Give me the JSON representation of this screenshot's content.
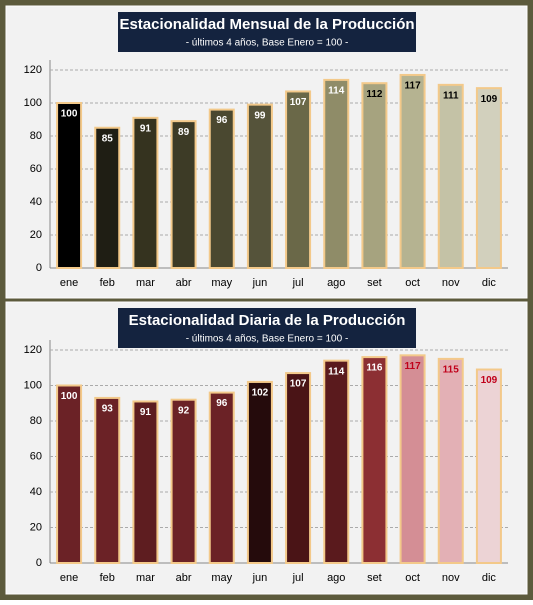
{
  "chart_data": [
    {
      "type": "bar",
      "title": "Estacionalidad Mensual de la Producción",
      "subtitle": "- últimos 4 años, Base Enero = 100 -",
      "categories": [
        "ene",
        "feb",
        "mar",
        "abr",
        "may",
        "jun",
        "jul",
        "ago",
        "set",
        "oct",
        "nov",
        "dic"
      ],
      "values": [
        100,
        85,
        91,
        89,
        96,
        99,
        107,
        114,
        112,
        117,
        111,
        109
      ],
      "colors": [
        "#000000",
        "#1f1e14",
        "#35331f",
        "#3d3b26",
        "#4a4830",
        "#55533a",
        "#6a6848",
        "#8f8c68",
        "#a6a37f",
        "#b5b391",
        "#c4c2a6",
        "#d2d0bd"
      ],
      "label_colors": [
        "#ffffff",
        "#ffffff",
        "#ffffff",
        "#ffffff",
        "#ffffff",
        "#ffffff",
        "#ffffff",
        "#ffffff",
        "#000000",
        "#000000",
        "#000000",
        "#000000"
      ],
      "ylim": [
        0,
        120
      ],
      "yticks": [
        0,
        20,
        40,
        60,
        80,
        100,
        120
      ],
      "grid": true
    },
    {
      "type": "bar",
      "title": "Estacionalidad Diaria de la Producción",
      "subtitle": "- últimos 4 años, Base Enero = 100 -",
      "categories": [
        "ene",
        "feb",
        "mar",
        "abr",
        "may",
        "jun",
        "jul",
        "ago",
        "set",
        "oct",
        "nov",
        "dic"
      ],
      "values": [
        100,
        93,
        91,
        92,
        96,
        102,
        107,
        114,
        116,
        117,
        115,
        109
      ],
      "colors": [
        "#6b2226",
        "#6b2226",
        "#5e1d20",
        "#6b2226",
        "#6b2226",
        "#250b0c",
        "#4a1416",
        "#5a1a1d",
        "#8c2f33",
        "#d48e95",
        "#e3b0b5",
        "#ecd3d5"
      ],
      "label_colors": [
        "#ffffff",
        "#ffffff",
        "#ffffff",
        "#ffffff",
        "#ffffff",
        "#ffffff",
        "#ffffff",
        "#ffffff",
        "#ffffff",
        "#c0001a",
        "#c0001a",
        "#c0001a"
      ],
      "ylim": [
        0,
        120
      ],
      "yticks": [
        0,
        20,
        40,
        60,
        80,
        100,
        120
      ],
      "grid": true
    }
  ]
}
